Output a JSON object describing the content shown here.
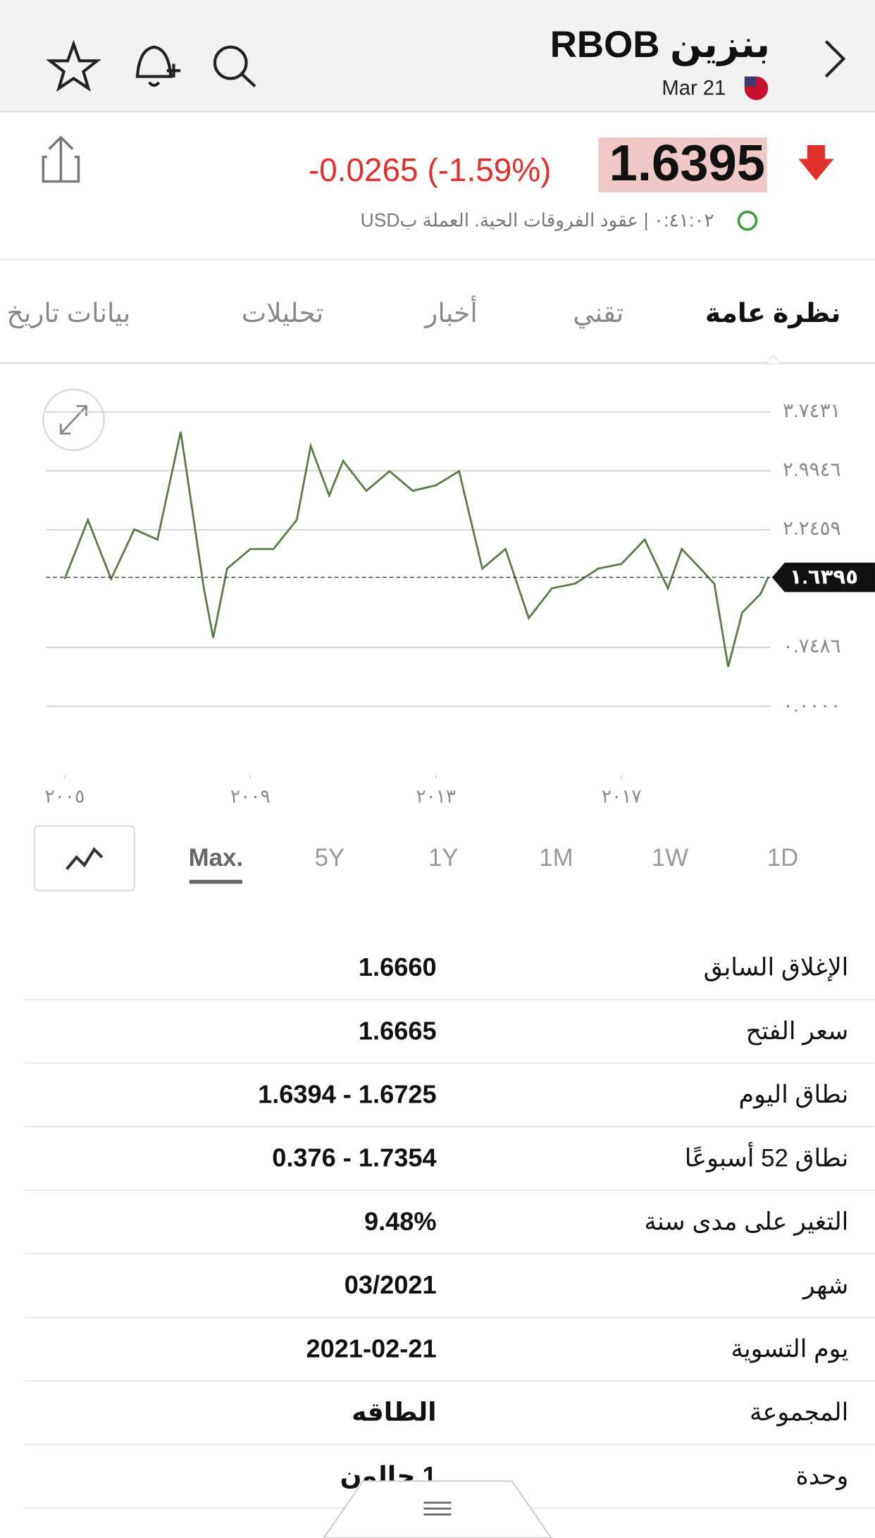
{
  "header": {
    "title": "بنزين RBOB",
    "date": "Mar 21"
  },
  "quote": {
    "price": "1.6395",
    "change": "-0.0265 (-1.59%)",
    "meta": "٠:٤١:٠٢ | عقود الفروقات الحية. العملة بUSD"
  },
  "tabs": [
    "نظرة عامة",
    "تقني",
    "أخبار",
    "تحليلات",
    "بيانات تاريخ"
  ],
  "ranges": [
    "1D",
    "1W",
    "1M",
    "1Y",
    "5Y",
    "Max."
  ],
  "chart_data": {
    "type": "line",
    "x": [
      2005.0,
      2005.5,
      2006.0,
      2006.5,
      2007.0,
      2007.5,
      2008.0,
      2008.2,
      2008.5,
      2009.0,
      2009.5,
      2010.0,
      2010.3,
      2010.7,
      2011.0,
      2011.5,
      2012.0,
      2012.5,
      2013.0,
      2013.5,
      2014.0,
      2014.5,
      2015.0,
      2015.5,
      2016.0,
      2016.5,
      2017.0,
      2017.5,
      2018.0,
      2018.3,
      2018.7,
      2019.0,
      2019.3,
      2019.6,
      2020.0,
      2020.16
    ],
    "series": [
      {
        "name": "RBOB",
        "color": "#5a7a45",
        "values": [
          1.62,
          2.37,
          1.62,
          2.25,
          2.12,
          3.49,
          1.5,
          0.87,
          1.75,
          2.0,
          2.0,
          2.37,
          3.31,
          2.68,
          3.12,
          2.74,
          2.99,
          2.74,
          2.81,
          2.99,
          1.75,
          2.0,
          1.12,
          1.5,
          1.56,
          1.75,
          1.81,
          2.12,
          1.5,
          2.0,
          1.75,
          1.56,
          0.5,
          1.19,
          1.43,
          1.6395
        ]
      }
    ],
    "xlim": [
      2004.6,
      2020.2
    ],
    "xticks": [
      {
        "value": 2005,
        "label": "٢٠٠٥"
      },
      {
        "value": 2009,
        "label": "٢٠٠٩"
      },
      {
        "value": 2013,
        "label": "٢٠١٣"
      },
      {
        "value": 2017,
        "label": "٢٠١٧"
      }
    ],
    "ylim": [
      0,
      3.7431
    ],
    "yticks": [
      {
        "value": 0,
        "label": "٠.٠٠٠٠"
      },
      {
        "value": 0.7486,
        "label": "٠.٧٤٨٦"
      },
      {
        "value": 2.2459,
        "label": "٢.٢٤٥٩"
      },
      {
        "value": 2.9946,
        "label": "٢.٩٩٤٦"
      },
      {
        "value": 3.7431,
        "label": "٣.٧٤٣١"
      }
    ],
    "current": {
      "value": 1.6395,
      "label": "١.٦٣٩٥"
    },
    "grid": true
  },
  "stats": [
    [
      "الإغلاق السابق",
      "1.6660"
    ],
    [
      "سعر الفتح",
      "1.6665"
    ],
    [
      "نطاق اليوم",
      "1.6394 - 1.6725"
    ],
    [
      "نطاق 52 أسبوعًا",
      "0.376 - 1.7354"
    ],
    [
      "التغير على مدى سنة",
      "9.48%"
    ],
    [
      "شهر",
      "03/2021"
    ],
    [
      "يوم التسوية",
      "2021-02-21"
    ],
    [
      "المجموعة",
      "الطاقه"
    ],
    [
      "وحدة",
      "1 جالون"
    ]
  ]
}
